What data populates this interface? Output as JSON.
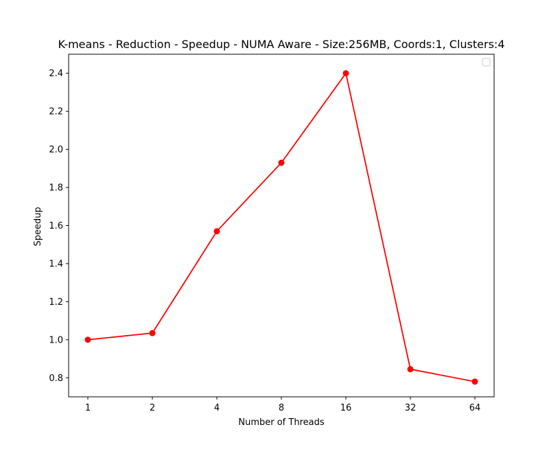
{
  "colors": {
    "series_line": "#ff0000",
    "series_marker": "#ff0000",
    "axes": "#000000",
    "background": "#ffffff",
    "legend_border": "#cccccc"
  },
  "chart_data": {
    "type": "line",
    "title": "K-means - Reduction - Speedup - NUMA Aware - Size:256MB, Coords:1, Clusters:4",
    "xlabel": "Number of Threads",
    "ylabel": "Speedup",
    "categories": [
      "1",
      "2",
      "4",
      "8",
      "16",
      "32",
      "64"
    ],
    "series": [
      {
        "values": [
          1.0,
          1.035,
          1.57,
          1.93,
          2.4,
          0.845,
          0.78
        ]
      }
    ],
    "ylim": [
      0.7,
      2.5
    ],
    "yticks": [
      0.8,
      1.0,
      1.2,
      1.4,
      1.6,
      1.8,
      2.0,
      2.2,
      2.4
    ],
    "ytick_labels": [
      "0.8",
      "1.0",
      "1.2",
      "1.4",
      "1.6",
      "1.8",
      "2.0",
      "2.2",
      "2.4"
    ],
    "grid": false,
    "legend": {
      "placement": "top-right",
      "entries": []
    }
  }
}
